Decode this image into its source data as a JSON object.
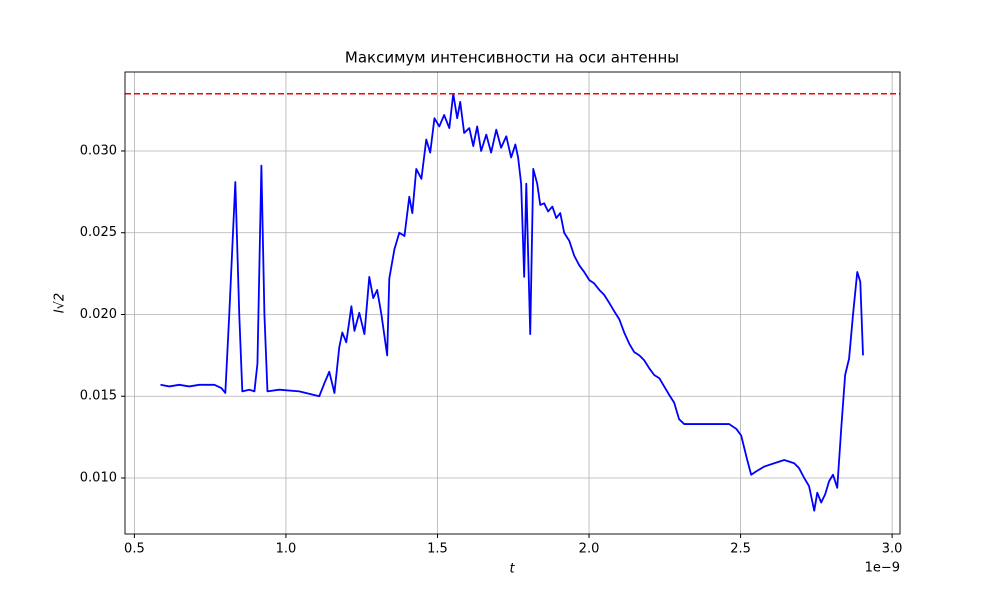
{
  "chart_data": {
    "type": "line",
    "title": "Максимум интенсивности на оси антенны",
    "xlabel": "t",
    "ylabel": "I√2",
    "x_offset_label": "1e−9",
    "color": "#0000ff",
    "hline": {
      "value": 0.0335,
      "color": "#ff0000",
      "style": "dashed"
    },
    "grid": true,
    "xlim": [
      0.469,
      3.026
    ],
    "ylim": [
      0.006575,
      0.03483
    ],
    "xticks": [
      0.5,
      {
        "value": 1,
        "label": "1.0"
      },
      1.5,
      {
        "value": 2,
        "label": "2.0"
      },
      2.5,
      {
        "value": 3,
        "label": "3.0"
      }
    ],
    "yticks": [
      {
        "value": 0.01,
        "label": "0.010"
      },
      0.015,
      {
        "value": 0.02,
        "label": "0.020"
      },
      0.025,
      {
        "value": 0.03,
        "label": "0.030"
      }
    ],
    "x": [
      0.586,
      0.615,
      0.648,
      0.681,
      0.714,
      0.764,
      0.787,
      0.8,
      0.813,
      0.833,
      0.846,
      0.856,
      0.879,
      0.896,
      0.906,
      0.919,
      0.929,
      0.939,
      0.978,
      1.044,
      1.11,
      1.127,
      1.143,
      1.16,
      1.176,
      1.186,
      1.199,
      1.216,
      1.226,
      1.242,
      1.259,
      1.275,
      1.288,
      1.301,
      1.315,
      1.334,
      1.341,
      1.358,
      1.374,
      1.391,
      1.407,
      1.417,
      1.43,
      1.447,
      1.463,
      1.476,
      1.49,
      1.506,
      1.522,
      1.539,
      1.552,
      1.565,
      1.575,
      1.588,
      1.605,
      1.618,
      1.631,
      1.644,
      1.661,
      1.677,
      1.694,
      1.71,
      1.727,
      1.743,
      1.757,
      1.766,
      1.776,
      1.786,
      1.793,
      1.806,
      1.816,
      1.829,
      1.839,
      1.852,
      1.865,
      1.879,
      1.892,
      1.905,
      1.918,
      1.935,
      1.951,
      1.968,
      1.984,
      2.001,
      2.017,
      2.034,
      2.05,
      2.067,
      2.083,
      2.1,
      2.116,
      2.133,
      2.149,
      2.166,
      2.182,
      2.199,
      2.215,
      2.232,
      2.248,
      2.264,
      2.281,
      2.297,
      2.314,
      2.363,
      2.413,
      2.462,
      2.486,
      2.502,
      2.522,
      2.535,
      2.551,
      2.578,
      2.611,
      2.644,
      2.677,
      2.693,
      2.71,
      2.726,
      2.743,
      2.753,
      2.766,
      2.779,
      2.792,
      2.805,
      2.819,
      2.832,
      2.845,
      2.858,
      2.871,
      2.885,
      2.895,
      2.904
    ],
    "values": [
      0.0157,
      0.0156,
      0.0157,
      0.0156,
      0.0157,
      0.0157,
      0.0155,
      0.0152,
      0.02,
      0.0281,
      0.02,
      0.0153,
      0.0154,
      0.0153,
      0.017,
      0.0291,
      0.02,
      0.0153,
      0.0154,
      0.0153,
      0.015,
      0.0158,
      0.0165,
      0.0152,
      0.018,
      0.0189,
      0.0183,
      0.0205,
      0.019,
      0.0201,
      0.0188,
      0.0223,
      0.021,
      0.0215,
      0.02,
      0.0175,
      0.0222,
      0.024,
      0.025,
      0.0248,
      0.0272,
      0.0262,
      0.0289,
      0.0283,
      0.0307,
      0.0299,
      0.032,
      0.0315,
      0.0322,
      0.0314,
      0.0335,
      0.032,
      0.033,
      0.0311,
      0.0314,
      0.0303,
      0.0315,
      0.03,
      0.031,
      0.0299,
      0.0313,
      0.0302,
      0.0309,
      0.0296,
      0.0304,
      0.0296,
      0.028,
      0.0223,
      0.028,
      0.0188,
      0.0289,
      0.028,
      0.0267,
      0.0268,
      0.0263,
      0.0266,
      0.0259,
      0.0262,
      0.025,
      0.0245,
      0.0236,
      0.023,
      0.0226,
      0.0221,
      0.0219,
      0.0215,
      0.0212,
      0.0207,
      0.0202,
      0.0197,
      0.0189,
      0.0182,
      0.0177,
      0.0175,
      0.0172,
      0.0167,
      0.0163,
      0.0161,
      0.0156,
      0.0151,
      0.0146,
      0.0136,
      0.0133,
      0.0133,
      0.0133,
      0.0133,
      0.013,
      0.0126,
      0.0111,
      0.0102,
      0.0104,
      0.0107,
      0.0109,
      0.0111,
      0.0109,
      0.0106,
      0.01,
      0.0095,
      0.008,
      0.0091,
      0.0085,
      0.009,
      0.0098,
      0.0102,
      0.0094,
      0.013,
      0.0163,
      0.0173,
      0.02,
      0.0226,
      0.022,
      0.0175
    ]
  }
}
